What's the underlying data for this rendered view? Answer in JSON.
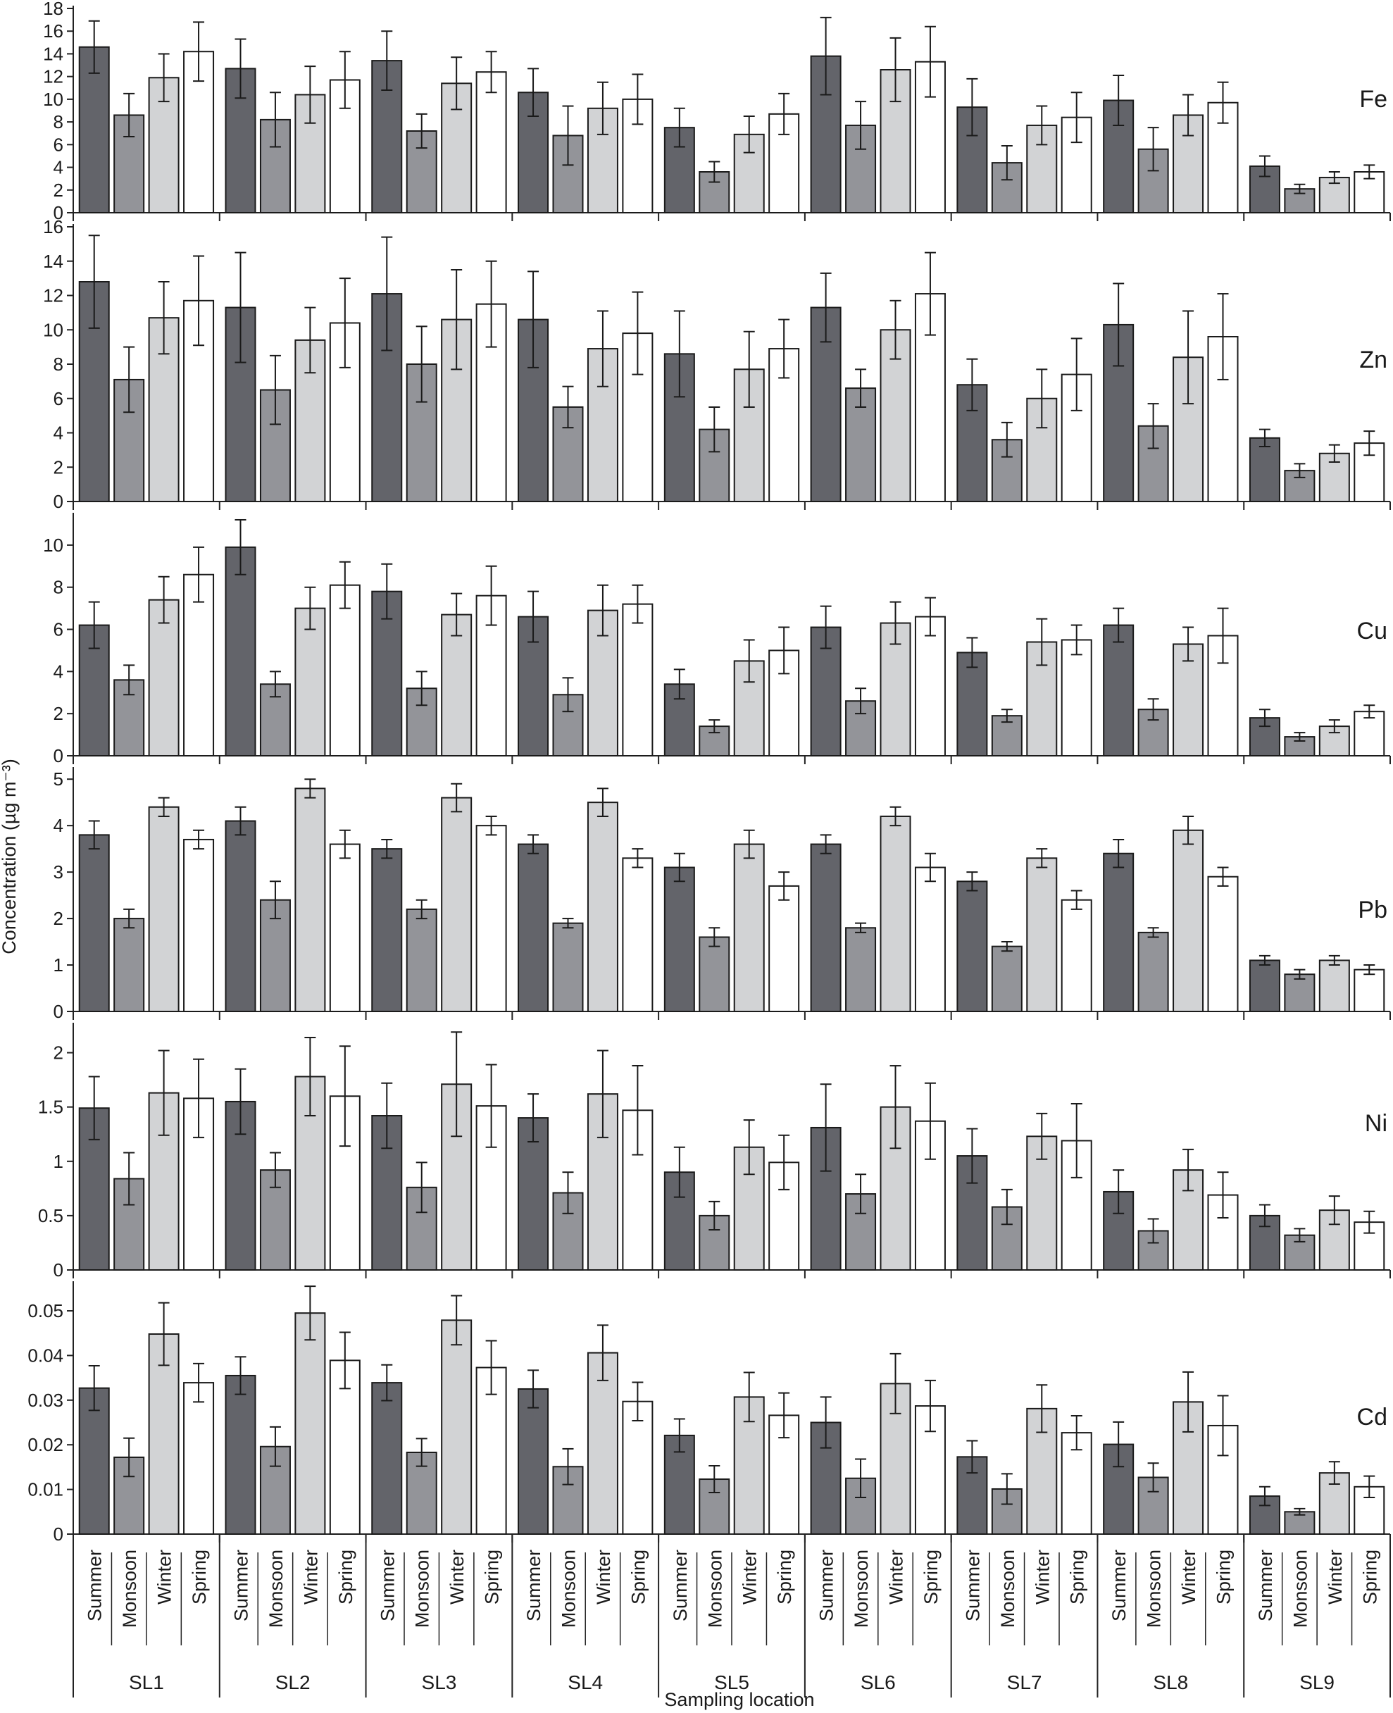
{
  "chart_data": {
    "type": "bar",
    "xlabel": "Sampling location",
    "ylabel": "Concentration (µg m⁻³)",
    "locations": [
      "SL1",
      "SL2",
      "SL3",
      "SL4",
      "SL5",
      "SL6",
      "SL7",
      "SL8",
      "SL9"
    ],
    "seasons": [
      "Summer",
      "Monsoon",
      "Winter",
      "Spring"
    ],
    "season_colors": [
      "#63646a",
      "#939499",
      "#d2d3d5",
      "#ffffff"
    ],
    "panels": [
      {
        "element": "Fe",
        "ylim": [
          0,
          18
        ],
        "yticks": [
          0,
          2,
          4,
          6,
          8,
          10,
          12,
          14,
          16,
          18
        ],
        "values": [
          [
            14.6,
            8.6,
            11.9,
            14.2
          ],
          [
            12.7,
            8.2,
            10.4,
            11.7
          ],
          [
            13.4,
            7.2,
            11.4,
            12.4
          ],
          [
            10.6,
            6.8,
            9.2,
            10.0
          ],
          [
            7.5,
            3.6,
            6.9,
            8.7
          ],
          [
            13.8,
            7.7,
            12.6,
            13.3
          ],
          [
            9.3,
            4.4,
            7.7,
            8.4
          ],
          [
            9.9,
            5.6,
            8.6,
            9.7
          ],
          [
            4.1,
            2.1,
            3.1,
            3.6
          ]
        ],
        "errors": [
          [
            2.3,
            1.9,
            2.1,
            2.6
          ],
          [
            2.6,
            2.4,
            2.5,
            2.5
          ],
          [
            2.6,
            1.5,
            2.3,
            1.8
          ],
          [
            2.1,
            2.6,
            2.3,
            2.2
          ],
          [
            1.7,
            0.9,
            1.6,
            1.8
          ],
          [
            3.4,
            2.1,
            2.8,
            3.1
          ],
          [
            2.5,
            1.5,
            1.7,
            2.2
          ],
          [
            2.2,
            1.9,
            1.8,
            1.8
          ],
          [
            0.9,
            0.4,
            0.5,
            0.6
          ]
        ]
      },
      {
        "element": "Zn",
        "ylim": [
          0,
          16
        ],
        "yticks": [
          0,
          2,
          4,
          6,
          8,
          10,
          12,
          14,
          16
        ],
        "values": [
          [
            12.8,
            7.1,
            10.7,
            11.7
          ],
          [
            11.3,
            6.5,
            9.4,
            10.4
          ],
          [
            12.1,
            8.0,
            10.6,
            11.5
          ],
          [
            10.6,
            5.5,
            8.9,
            9.8
          ],
          [
            8.6,
            4.2,
            7.7,
            8.9
          ],
          [
            11.3,
            6.6,
            10.0,
            12.1
          ],
          [
            6.8,
            3.6,
            6.0,
            7.4
          ],
          [
            10.3,
            4.4,
            8.4,
            9.6
          ],
          [
            3.7,
            1.8,
            2.8,
            3.4
          ]
        ],
        "errors": [
          [
            2.7,
            1.9,
            2.1,
            2.6
          ],
          [
            3.2,
            2.0,
            1.9,
            2.6
          ],
          [
            3.3,
            2.2,
            2.9,
            2.5
          ],
          [
            2.8,
            1.2,
            2.2,
            2.4
          ],
          [
            2.5,
            1.3,
            2.2,
            1.7
          ],
          [
            2.0,
            1.1,
            1.7,
            2.4
          ],
          [
            1.5,
            1.0,
            1.7,
            2.1
          ],
          [
            2.4,
            1.3,
            2.7,
            2.5
          ],
          [
            0.5,
            0.4,
            0.5,
            0.7
          ]
        ]
      },
      {
        "element": "Cu",
        "ylim": [
          0,
          11.4
        ],
        "yticks": [
          0,
          2,
          4,
          6,
          8,
          10
        ],
        "values": [
          [
            6.2,
            3.6,
            7.4,
            8.6
          ],
          [
            9.9,
            3.4,
            7.0,
            8.1
          ],
          [
            7.8,
            3.2,
            6.7,
            7.6
          ],
          [
            6.6,
            2.9,
            6.9,
            7.2
          ],
          [
            3.4,
            1.4,
            4.5,
            5.0
          ],
          [
            6.1,
            2.6,
            6.3,
            6.6
          ],
          [
            4.9,
            1.9,
            5.4,
            5.5
          ],
          [
            6.2,
            2.2,
            5.3,
            5.7
          ],
          [
            1.8,
            0.9,
            1.4,
            2.1
          ]
        ],
        "errors": [
          [
            1.1,
            0.7,
            1.1,
            1.3
          ],
          [
            1.3,
            0.6,
            1.0,
            1.1
          ],
          [
            1.3,
            0.8,
            1.0,
            1.4
          ],
          [
            1.2,
            0.8,
            1.2,
            0.9
          ],
          [
            0.7,
            0.3,
            1.0,
            1.1
          ],
          [
            1.0,
            0.6,
            1.0,
            0.9
          ],
          [
            0.7,
            0.3,
            1.1,
            0.7
          ],
          [
            0.8,
            0.5,
            0.8,
            1.3
          ],
          [
            0.4,
            0.2,
            0.3,
            0.3
          ]
        ]
      },
      {
        "element": "Pb",
        "ylim": [
          0,
          5.2
        ],
        "yticks": [
          0,
          1,
          2,
          3,
          4,
          5
        ],
        "values": [
          [
            3.8,
            2.0,
            4.4,
            3.7
          ],
          [
            4.1,
            2.4,
            4.8,
            3.6
          ],
          [
            3.5,
            2.2,
            4.6,
            4.0
          ],
          [
            3.6,
            1.9,
            4.5,
            3.3
          ],
          [
            3.1,
            1.6,
            3.6,
            2.7
          ],
          [
            3.6,
            1.8,
            4.2,
            3.1
          ],
          [
            2.8,
            1.4,
            3.3,
            2.4
          ],
          [
            3.4,
            1.7,
            3.9,
            2.9
          ],
          [
            1.1,
            0.8,
            1.1,
            0.9
          ]
        ],
        "errors": [
          [
            0.3,
            0.2,
            0.2,
            0.2
          ],
          [
            0.3,
            0.4,
            0.2,
            0.3
          ],
          [
            0.2,
            0.2,
            0.3,
            0.2
          ],
          [
            0.2,
            0.1,
            0.3,
            0.2
          ],
          [
            0.3,
            0.2,
            0.3,
            0.3
          ],
          [
            0.2,
            0.1,
            0.2,
            0.3
          ],
          [
            0.2,
            0.1,
            0.2,
            0.2
          ],
          [
            0.3,
            0.1,
            0.3,
            0.2
          ],
          [
            0.1,
            0.1,
            0.1,
            0.1
          ]
        ]
      },
      {
        "element": "Ni",
        "ylim": [
          0,
          2.25
        ],
        "yticks": [
          0,
          0.5,
          1,
          1.5,
          2
        ],
        "ytick_labels": [
          "0",
          "0.5",
          "1",
          "1.5",
          "2"
        ],
        "values": [
          [
            1.49,
            0.84,
            1.63,
            1.58
          ],
          [
            1.55,
            0.92,
            1.78,
            1.6
          ],
          [
            1.42,
            0.76,
            1.71,
            1.51
          ],
          [
            1.4,
            0.71,
            1.62,
            1.47
          ],
          [
            0.9,
            0.5,
            1.13,
            0.99
          ],
          [
            1.31,
            0.7,
            1.5,
            1.37
          ],
          [
            1.05,
            0.58,
            1.23,
            1.19
          ],
          [
            0.72,
            0.36,
            0.92,
            0.69
          ],
          [
            0.5,
            0.32,
            0.55,
            0.44
          ]
        ],
        "errors": [
          [
            0.29,
            0.24,
            0.39,
            0.36
          ],
          [
            0.3,
            0.16,
            0.36,
            0.46
          ],
          [
            0.3,
            0.23,
            0.48,
            0.38
          ],
          [
            0.22,
            0.19,
            0.4,
            0.41
          ],
          [
            0.23,
            0.13,
            0.25,
            0.25
          ],
          [
            0.4,
            0.18,
            0.38,
            0.35
          ],
          [
            0.25,
            0.16,
            0.21,
            0.34
          ],
          [
            0.2,
            0.11,
            0.19,
            0.21
          ],
          [
            0.1,
            0.06,
            0.13,
            0.1
          ]
        ]
      },
      {
        "element": "Cd",
        "ylim": [
          0,
          0.056
        ],
        "yticks": [
          0,
          0.01,
          0.02,
          0.03,
          0.04,
          0.05
        ],
        "ytick_labels": [
          "0",
          "0.01",
          "0.02",
          "0.03",
          "0.04",
          "0.05"
        ],
        "values": [
          [
            0.0327,
            0.0172,
            0.0448,
            0.0339
          ],
          [
            0.0355,
            0.0196,
            0.0495,
            0.0389
          ],
          [
            0.0339,
            0.0183,
            0.0479,
            0.0373
          ],
          [
            0.0325,
            0.0151,
            0.0406,
            0.0297
          ],
          [
            0.0221,
            0.0123,
            0.0307,
            0.0266
          ],
          [
            0.025,
            0.0125,
            0.0337,
            0.0287
          ],
          [
            0.0173,
            0.0101,
            0.0281,
            0.0227
          ],
          [
            0.0201,
            0.0127,
            0.0296,
            0.0243
          ],
          [
            0.0085,
            0.005,
            0.0137,
            0.0106
          ]
        ],
        "errors": [
          [
            0.005,
            0.0043,
            0.007,
            0.0043
          ],
          [
            0.0042,
            0.0044,
            0.006,
            0.0063
          ],
          [
            0.004,
            0.0031,
            0.0055,
            0.006
          ],
          [
            0.0042,
            0.004,
            0.0062,
            0.0043
          ],
          [
            0.0037,
            0.003,
            0.0055,
            0.005
          ],
          [
            0.0057,
            0.0043,
            0.0067,
            0.0057
          ],
          [
            0.0036,
            0.0034,
            0.0053,
            0.0038
          ],
          [
            0.005,
            0.0032,
            0.0067,
            0.0067
          ],
          [
            0.0021,
            0.0007,
            0.0025,
            0.0024
          ]
        ]
      }
    ]
  }
}
